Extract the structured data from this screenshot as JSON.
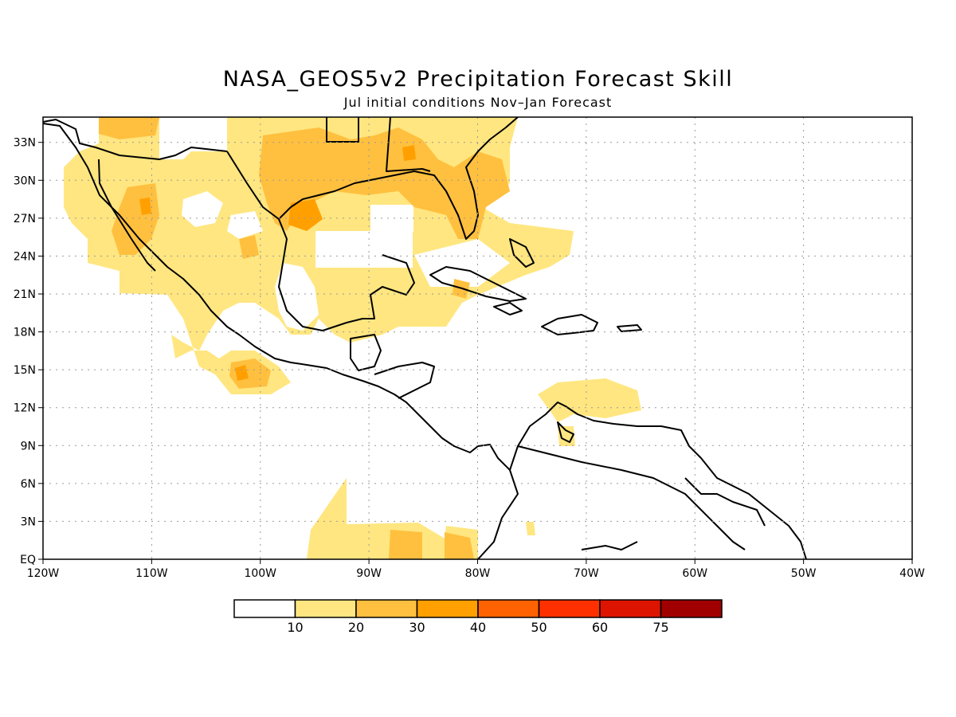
{
  "title": "NASA_GEOS5v2 Precipitation Forecast Skill",
  "subtitle": "Jul initial conditions   Nov–Jan Forecast",
  "map": {
    "lon_range": [
      -120,
      -40
    ],
    "lat_range": [
      0,
      35
    ],
    "lon_ticks": [
      "120W",
      "110W",
      "100W",
      "90W",
      "80W",
      "70W",
      "60W",
      "50W",
      "40W"
    ],
    "lat_ticks": [
      "EQ",
      "3N",
      "6N",
      "9N",
      "12N",
      "15N",
      "18N",
      "21N",
      "24N",
      "27N",
      "30N",
      "33N"
    ],
    "grid": true
  },
  "colorbar": {
    "labels": [
      "10",
      "20",
      "30",
      "40",
      "50",
      "60",
      "75"
    ],
    "colors": [
      "#ffffff",
      "#ffe680",
      "#ffc03f",
      "#ffa000",
      "#ff6200",
      "#ff3000",
      "#dc1400",
      "#a00000"
    ]
  }
}
